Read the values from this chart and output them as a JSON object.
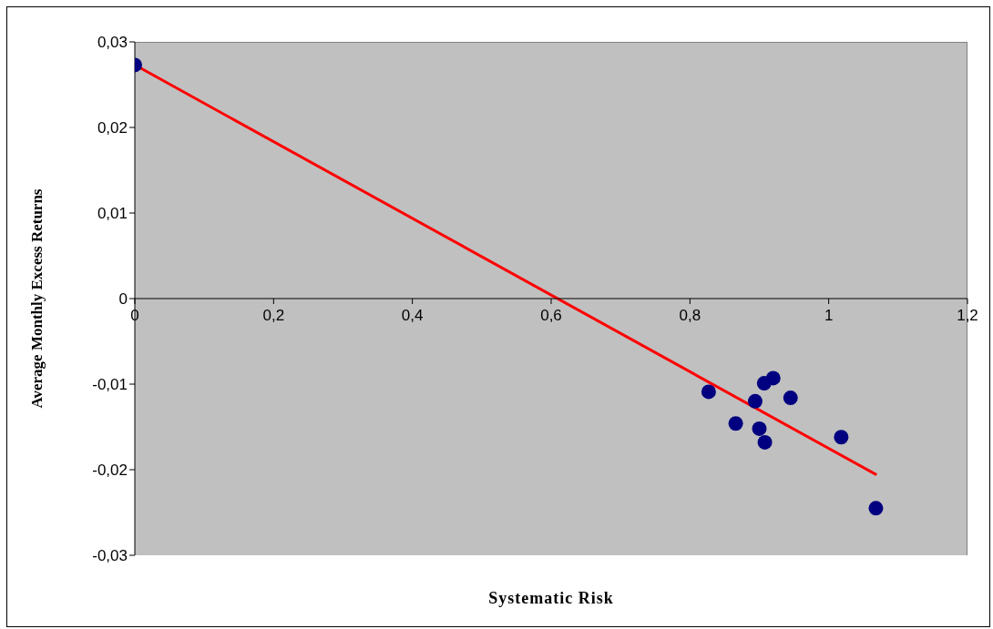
{
  "chart_data": {
    "type": "scatter",
    "xlabel": "Systematic Risk",
    "ylabel": "Average Monthly Excess Returns",
    "xlim": [
      0,
      1.2
    ],
    "xticks": [
      {
        "value": 0,
        "label": "0"
      },
      {
        "value": 0.2,
        "label": "0,2"
      },
      {
        "value": 0.4,
        "label": "0,4"
      },
      {
        "value": 0.6,
        "label": "0,6"
      },
      {
        "value": 0.8,
        "label": "0,8"
      },
      {
        "value": 1,
        "label": "1"
      },
      {
        "value": 1.2,
        "label": "1,2"
      }
    ],
    "ylim": [
      -0.03,
      0.03
    ],
    "yticks": [
      {
        "value": -0.03,
        "label": "-0,03"
      },
      {
        "value": -0.02,
        "label": "-0,02"
      },
      {
        "value": -0.01,
        "label": "-0,01"
      },
      {
        "value": 0,
        "label": "0"
      },
      {
        "value": 0.01,
        "label": "0,01"
      },
      {
        "value": 0.02,
        "label": "0,02"
      },
      {
        "value": 0.03,
        "label": "0,03"
      }
    ],
    "marker": "circle",
    "series": [
      {
        "color": "#000080",
        "x": [
          0,
          0.827,
          0.907,
          0.92,
          0.894,
          0.945,
          0.866,
          0.9,
          0.908,
          1.018,
          1.068
        ],
        "values": [
          0.0273,
          -0.0109,
          -0.0099,
          -0.0093,
          -0.012,
          -0.0116,
          -0.0146,
          -0.0152,
          -0.0168,
          -0.0162,
          -0.0245
        ]
      },
      {
        "type": "line",
        "color": "#ff0000",
        "marker": "none",
        "x": [
          0,
          1.069
        ],
        "values": [
          0.0273,
          -0.0206
        ]
      }
    ]
  }
}
